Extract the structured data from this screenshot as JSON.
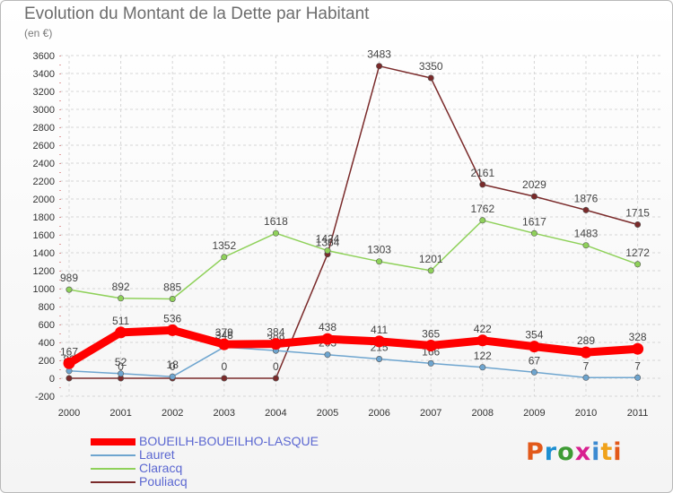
{
  "header": {
    "title": "Evolution du Montant de la Dette par Habitant",
    "subtitle": "(en €)"
  },
  "logo": {
    "text": "Proxiti",
    "letter_colors": [
      "#e2591a",
      "#1d8fd1",
      "#3e9b34",
      "#d81f8f",
      "#3c8ad1",
      "#f0a21a",
      "#e2591a"
    ]
  },
  "chart_data": {
    "type": "line",
    "x": [
      "2000",
      "2001",
      "2002",
      "2003",
      "2004",
      "2005",
      "2006",
      "2007",
      "2008",
      "2009",
      "2010",
      "2011"
    ],
    "ylim": [
      -200,
      3600
    ],
    "yticks": [
      -200,
      0,
      200,
      400,
      600,
      800,
      1000,
      1200,
      1400,
      1600,
      1800,
      2000,
      2200,
      2400,
      2600,
      2800,
      3000,
      3200,
      3400,
      3600
    ],
    "grid": true,
    "legend_position": "bottom-left",
    "series": [
      {
        "name": "Pouliacq",
        "color": "#7a2a2a",
        "values": [
          0,
          0,
          0,
          0,
          0,
          1384,
          3483,
          3350,
          2161,
          2029,
          1876,
          1715
        ]
      },
      {
        "name": "Claracq",
        "color": "#8fd15a",
        "values": [
          989,
          892,
          885,
          1352,
          1618,
          1424,
          1303,
          1201,
          1762,
          1617,
          1483,
          1272
        ]
      },
      {
        "name": "Lauret",
        "color": "#6ea5cf",
        "values": [
          82,
          52,
          18,
          348,
          309,
          263,
          215,
          166,
          122,
          67,
          7,
          7
        ]
      },
      {
        "name": "BOUEILH-BOUEILHO-LASQUE",
        "color": "#ff0000",
        "values": [
          167,
          511,
          536,
          379,
          384,
          438,
          411,
          365,
          422,
          354,
          289,
          328
        ]
      }
    ]
  }
}
